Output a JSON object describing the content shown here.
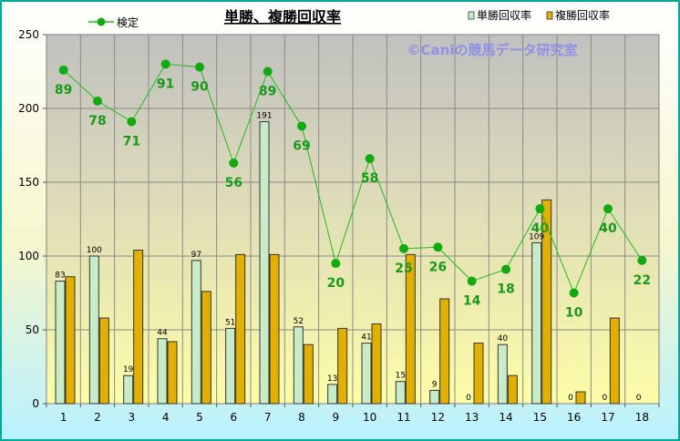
{
  "chart_data": {
    "type": "bar",
    "title": "単勝、複勝回収率",
    "watermark": "©Caniの競馬データ研究室",
    "categories": [
      "1",
      "2",
      "3",
      "4",
      "5",
      "6",
      "7",
      "8",
      "9",
      "10",
      "11",
      "12",
      "13",
      "14",
      "15",
      "16",
      "17",
      "18"
    ],
    "ylim": [
      0,
      250
    ],
    "yticks": [
      0,
      50,
      100,
      150,
      200,
      250
    ],
    "grid": true,
    "legend_position": "top",
    "series": [
      {
        "name": "単勝回収率",
        "kind": "bar",
        "color": "#c8ecc8",
        "values": [
          83,
          100,
          19,
          44,
          97,
          51,
          191,
          52,
          13,
          41,
          15,
          9,
          0,
          40,
          109,
          0,
          0,
          0
        ],
        "labels": [
          "83",
          "100",
          "19",
          "44",
          "97",
          "51",
          "191",
          "52",
          "13",
          "41",
          "15",
          "9",
          "0",
          "40",
          "109",
          "0",
          "0",
          "0"
        ]
      },
      {
        "name": "複勝回収率",
        "kind": "bar",
        "color": "#e2b000",
        "values": [
          86,
          58,
          104,
          42,
          76,
          101,
          101,
          40,
          51,
          54,
          101,
          71,
          41,
          19,
          138,
          8,
          58,
          0
        ]
      },
      {
        "name": "検定",
        "kind": "line",
        "color": "#22bb22",
        "values": [
          226,
          205,
          191,
          230,
          228,
          163,
          225,
          188,
          95,
          166,
          105,
          106,
          83,
          91,
          132,
          75,
          132,
          97
        ],
        "labels": [
          "89",
          "78",
          "71",
          "91",
          "90",
          "56",
          "89",
          "69",
          "20",
          "58",
          "25",
          "26",
          "14",
          "18",
          "40",
          "10",
          "40",
          "22"
        ]
      }
    ]
  }
}
